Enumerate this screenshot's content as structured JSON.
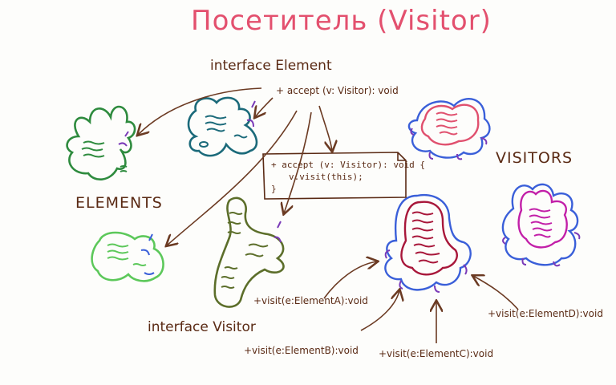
{
  "title": "Посетитель (Visitor)",
  "element_interface": {
    "name": "interface Element",
    "method": "+ accept (v: Visitor): void"
  },
  "labels": {
    "elements": "ELEMENTS",
    "visitors": "VISITORS",
    "visitor_interface": "interface Visitor"
  },
  "code_note": {
    "line1": "+ accept (v: Visitor): void {",
    "line2": "v.visit(this);",
    "line3": "}"
  },
  "visit_methods": {
    "a": "+visit(e:ElementA):void",
    "b": "+visit(e:ElementB):void",
    "c": "+visit(e:ElementC):void",
    "d": "+visit(e:ElementD):void"
  },
  "colors": {
    "title": "#e3506e",
    "text": "#5a2a14",
    "arrow": "#6b3a22",
    "element_green": "#2e8b3e",
    "element_teal": "#1b6a7a",
    "element_lightgreen": "#5cc85a",
    "element_olive": "#5c6e2a",
    "visitor_blue": "#3a5fd9",
    "visitor_pink": "#e0506e",
    "visitor_magenta": "#c21fa8",
    "visitor_crimson": "#a8173a",
    "port_purple": "#7a3ab8"
  }
}
